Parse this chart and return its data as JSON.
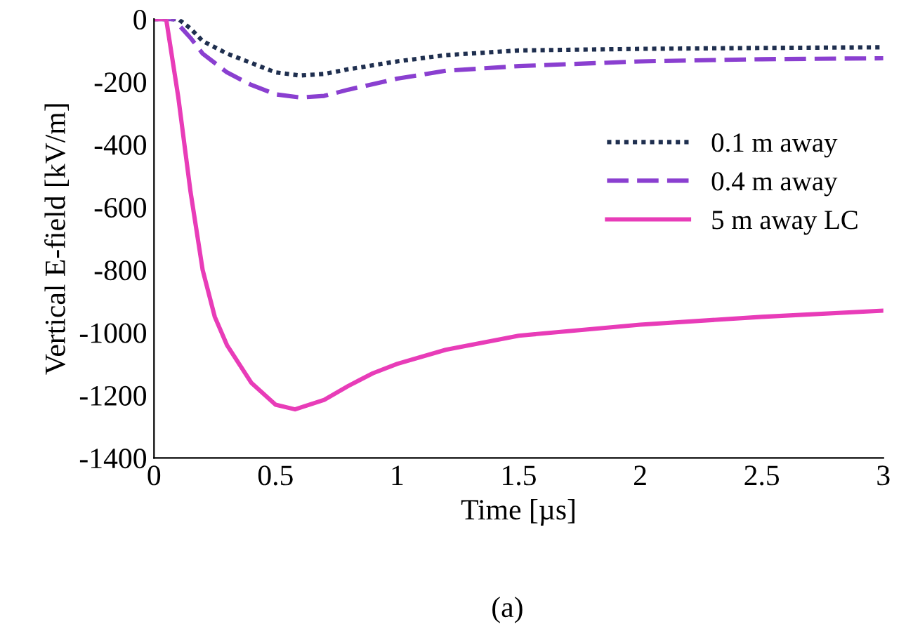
{
  "chart_data": {
    "type": "line",
    "xlabel": "Time [µs]",
    "ylabel": "Vertical E-field [kV/m]",
    "annotations": [
      "(a)"
    ],
    "xlim": [
      0,
      3
    ],
    "xticks": [
      0,
      0.5,
      1,
      1.5,
      2,
      2.5,
      3
    ],
    "ylim": [
      -1400,
      0
    ],
    "yticks": [
      -1400,
      -1200,
      -1000,
      -800,
      -600,
      -400,
      -200,
      0
    ],
    "grid": false,
    "legend": "right",
    "marker": "none",
    "series": [
      {
        "name": "0.1 m away",
        "color": "#1f2f4f",
        "line_style": "dotted",
        "x": [
          0,
          0.1,
          0.15,
          0.2,
          0.3,
          0.4,
          0.5,
          0.6,
          0.7,
          0.8,
          1.0,
          1.2,
          1.5,
          2,
          2.5,
          3
        ],
        "values": [
          0,
          0,
          -30,
          -70,
          -110,
          -140,
          -170,
          -180,
          -175,
          -160,
          -135,
          -115,
          -100,
          -95,
          -92,
          -90
        ]
      },
      {
        "name": "0.4 m away",
        "color": "#8a3fd0",
        "line_style": "dashed",
        "x": [
          0,
          0.08,
          0.15,
          0.2,
          0.3,
          0.4,
          0.5,
          0.6,
          0.7,
          0.8,
          1.0,
          1.2,
          1.5,
          2,
          2.5,
          3
        ],
        "values": [
          0,
          0,
          -60,
          -110,
          -170,
          -210,
          -240,
          -250,
          -245,
          -225,
          -190,
          -165,
          -150,
          -135,
          -128,
          -125
        ]
      },
      {
        "name": "5 m away LC",
        "color": "#e83cb8",
        "line_style": "solid",
        "x": [
          0,
          0.05,
          0.1,
          0.15,
          0.2,
          0.25,
          0.3,
          0.35,
          0.4,
          0.5,
          0.58,
          0.7,
          0.8,
          0.9,
          1.0,
          1.2,
          1.5,
          2,
          2.5,
          3
        ],
        "values": [
          0,
          0,
          -250,
          -550,
          -800,
          -950,
          -1040,
          -1100,
          -1160,
          -1230,
          -1245,
          -1215,
          -1170,
          -1130,
          -1100,
          -1055,
          -1010,
          -975,
          -950,
          -930
        ]
      }
    ]
  }
}
